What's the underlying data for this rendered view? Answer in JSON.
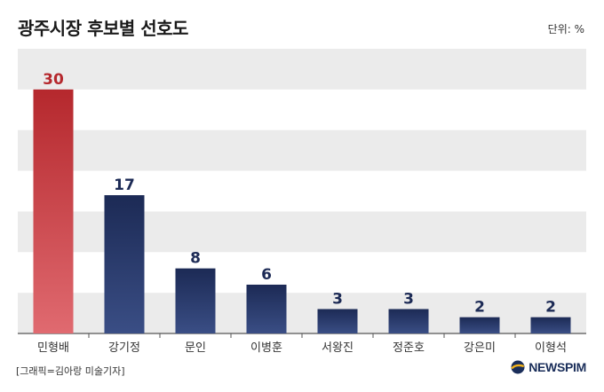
{
  "title": "광주시장 후보별 선호도",
  "unit_label": "단위: %",
  "credit": "[그래픽=김아랑 미술기자]",
  "logo_text": "NEWSPIM",
  "colors": {
    "highlight_top": "#b5282d",
    "highlight_bottom": "#e06a70",
    "bar_top": "#1c2a55",
    "bar_bottom": "#3a4e85",
    "band": "#ebebeb",
    "value_highlight": "#b5282d",
    "value_default": "#1c2a55"
  },
  "chart_data": {
    "type": "bar",
    "categories": [
      "민형배",
      "강기정",
      "문인",
      "이병훈",
      "서왕진",
      "정준호",
      "강은미",
      "이형석"
    ],
    "values": [
      30,
      17,
      8,
      6,
      3,
      3,
      2,
      2
    ],
    "highlight_index": 0,
    "title": "광주시장 후보별 선호도",
    "ylabel": "",
    "xlabel": "",
    "ylim": [
      0,
      35
    ],
    "grid": "alternating horizontal bands",
    "unit": "%"
  }
}
